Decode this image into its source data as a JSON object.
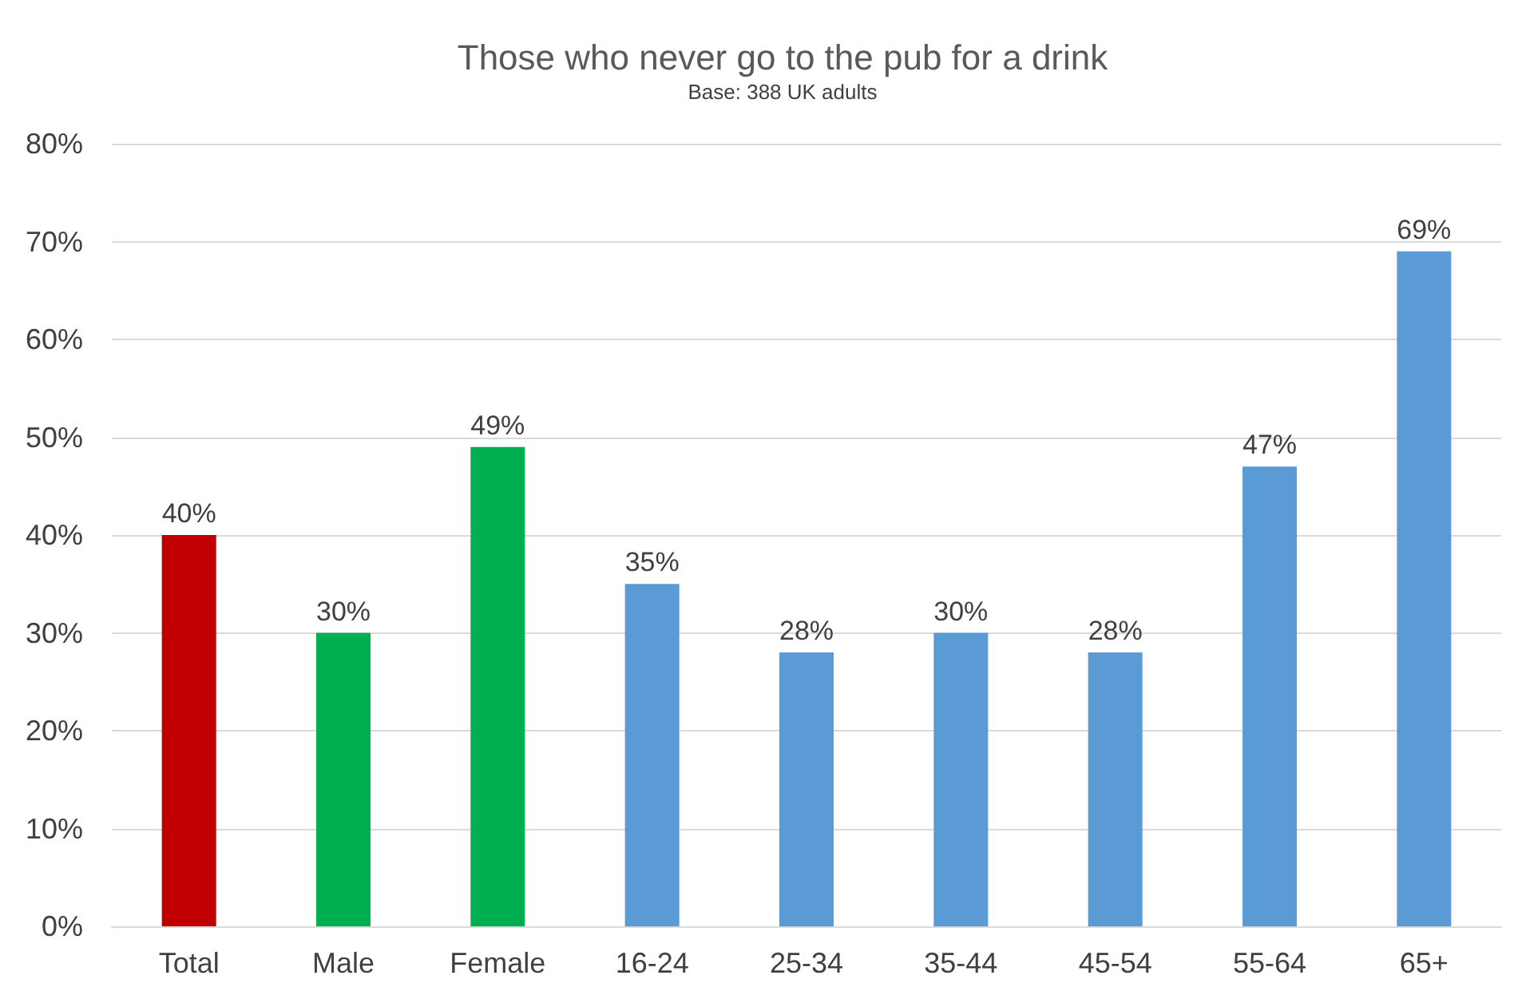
{
  "chart_data": {
    "type": "bar",
    "title": "Those who never go to the pub for a drink",
    "subtitle": "Base: 388 UK adults",
    "categories": [
      "Total",
      "Male",
      "Female",
      "16-24",
      "25-34",
      "35-44",
      "45-54",
      "55-64",
      "65+"
    ],
    "values": [
      40,
      30,
      49,
      35,
      28,
      30,
      28,
      47,
      69
    ],
    "colors": [
      "#c00000",
      "#00b050",
      "#00b050",
      "#5b9bd5",
      "#5b9bd5",
      "#5b9bd5",
      "#5b9bd5",
      "#5b9bd5",
      "#5b9bd5"
    ],
    "value_labels": [
      "40%",
      "30%",
      "49%",
      "35%",
      "28%",
      "30%",
      "28%",
      "47%",
      "69%"
    ],
    "ylim": [
      0,
      80
    ],
    "yticks": [
      {
        "value": 0,
        "label": "0%"
      },
      {
        "value": 10,
        "label": "10%"
      },
      {
        "value": 20,
        "label": "20%"
      },
      {
        "value": 30,
        "label": "30%"
      },
      {
        "value": 40,
        "label": "40%"
      },
      {
        "value": 50,
        "label": "50%"
      },
      {
        "value": 60,
        "label": "60%"
      },
      {
        "value": 70,
        "label": "70%"
      },
      {
        "value": 80,
        "label": "80%"
      }
    ],
    "grid": "y"
  }
}
